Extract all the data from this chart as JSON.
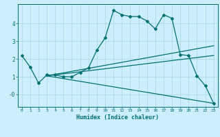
{
  "xlabel": "Humidex (Indice chaleur)",
  "bg_color": "#cceeff",
  "line_color": "#007070",
  "grid_color": "#aadddd",
  "x_ticks": [
    0,
    1,
    2,
    3,
    4,
    5,
    6,
    7,
    8,
    9,
    10,
    11,
    12,
    13,
    14,
    15,
    16,
    17,
    18,
    19,
    20,
    21,
    22,
    23
  ],
  "y_ticks": [
    0,
    1,
    2,
    3,
    4
  ],
  "ylim": [
    -0.7,
    5.1
  ],
  "xlim": [
    -0.5,
    23.5
  ],
  "line1_x": [
    0,
    1,
    2,
    3,
    4,
    5,
    6,
    7,
    8,
    9,
    10,
    11,
    12,
    13,
    14,
    15,
    16,
    17,
    18,
    19,
    20,
    21,
    22,
    23
  ],
  "line1_y": [
    2.2,
    1.55,
    0.65,
    1.1,
    1.1,
    1.0,
    1.0,
    1.25,
    1.5,
    2.5,
    3.2,
    4.75,
    4.5,
    4.4,
    4.4,
    4.15,
    3.7,
    4.5,
    4.3,
    2.25,
    2.2,
    1.05,
    0.5,
    -0.5
  ],
  "line2_x": [
    3,
    23
  ],
  "line2_y": [
    1.05,
    2.75
  ],
  "line3_x": [
    3,
    23
  ],
  "line3_y": [
    1.05,
    2.2
  ],
  "line4_x": [
    3,
    23
  ],
  "line4_y": [
    1.05,
    -0.5
  ]
}
